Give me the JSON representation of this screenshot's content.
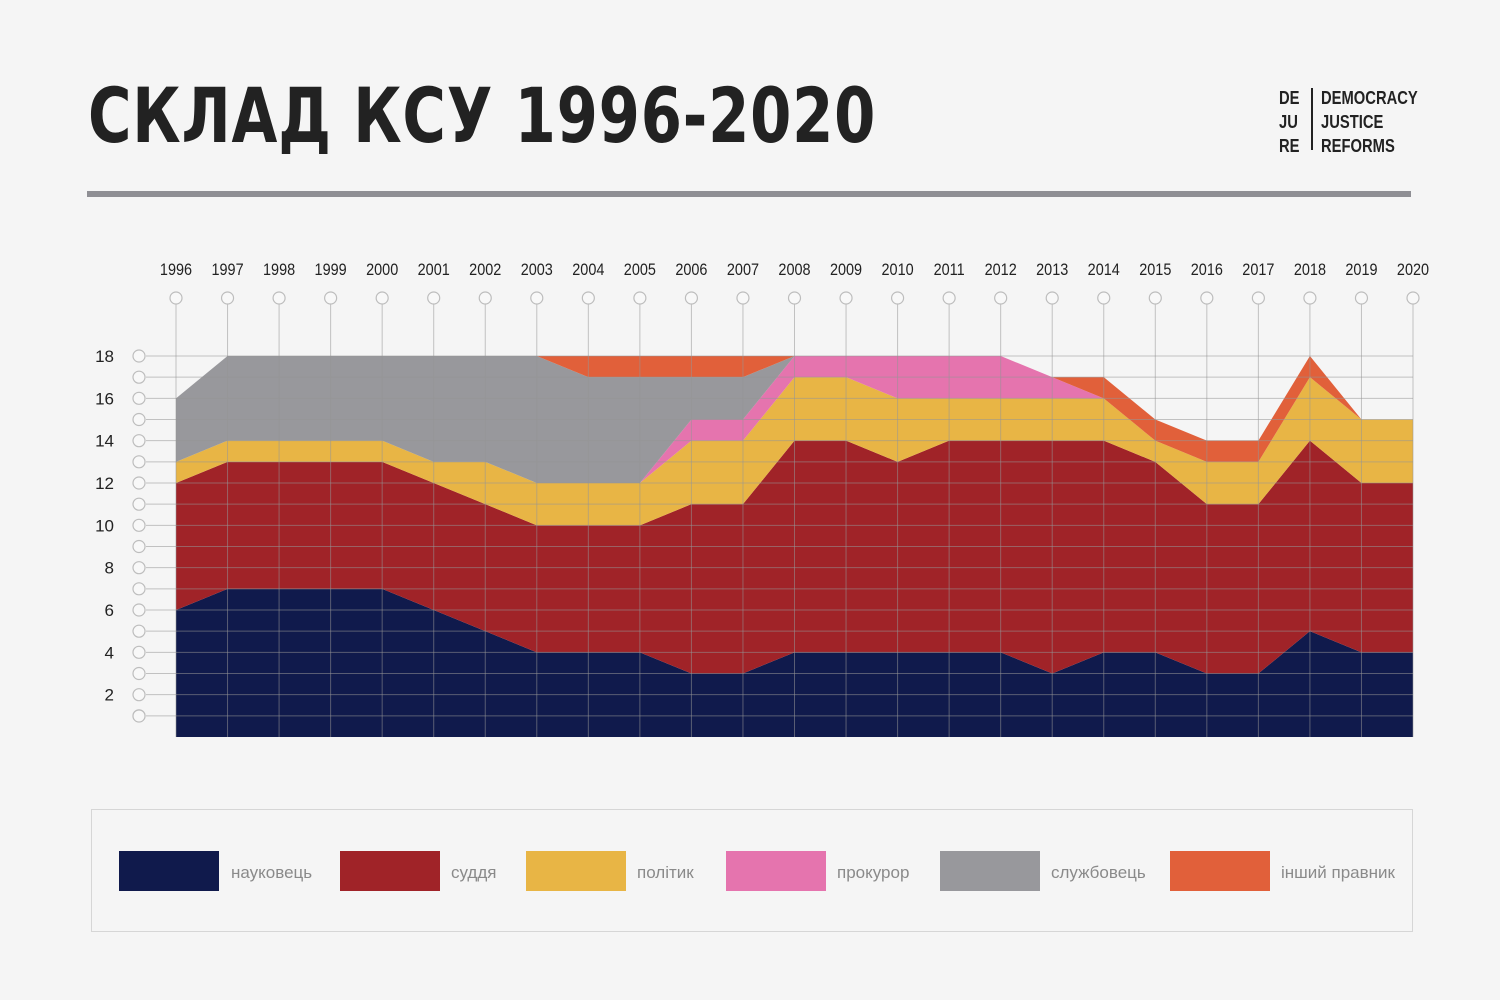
{
  "header": {
    "title": "СКЛАД КСУ 1996-2020",
    "logo": {
      "left": [
        "DE",
        "JU",
        "RE"
      ],
      "right": [
        "DEMOCRACY",
        "JUSTICE",
        "REFORMS"
      ]
    }
  },
  "chart_data": {
    "type": "area",
    "stacked": true,
    "title": "СКЛАД КСУ 1996-2020",
    "x": [
      1996,
      1997,
      1998,
      1999,
      2000,
      2001,
      2002,
      2003,
      2004,
      2005,
      2006,
      2007,
      2008,
      2009,
      2010,
      2011,
      2012,
      2013,
      2014,
      2015,
      2016,
      2017,
      2018,
      2019,
      2020
    ],
    "ylim": [
      0,
      18
    ],
    "yticks": [
      2,
      4,
      6,
      8,
      10,
      12,
      14,
      16,
      18
    ],
    "grid": true,
    "legend_position": "bottom",
    "series": [
      {
        "name": "науковець",
        "color": "#101a4c",
        "values": [
          6,
          7,
          7,
          7,
          7,
          6,
          5,
          4,
          4,
          4,
          3,
          3,
          4,
          4,
          4,
          4,
          4,
          3,
          4,
          4,
          3,
          3,
          5,
          4,
          4
        ]
      },
      {
        "name": "суддя",
        "color": "#a02328",
        "values": [
          6,
          6,
          6,
          6,
          6,
          6,
          6,
          6,
          6,
          6,
          8,
          8,
          10,
          10,
          9,
          10,
          10,
          11,
          10,
          9,
          8,
          8,
          9,
          8,
          8
        ]
      },
      {
        "name": "політик",
        "color": "#e8b545",
        "values": [
          1,
          1,
          1,
          1,
          1,
          1,
          2,
          2,
          2,
          2,
          3,
          3,
          3,
          3,
          3,
          2,
          2,
          2,
          2,
          1,
          2,
          2,
          3,
          3,
          3
        ]
      },
      {
        "name": "прокурор",
        "color": "#e574ae",
        "values": [
          0,
          0,
          0,
          0,
          0,
          0,
          0,
          0,
          0,
          0,
          1,
          1,
          1,
          1,
          2,
          2,
          2,
          1,
          0,
          0,
          0,
          0,
          0,
          0,
          0
        ]
      },
      {
        "name": "службовець",
        "color": "#98989c",
        "values": [
          3,
          4,
          4,
          4,
          4,
          5,
          5,
          6,
          5,
          5,
          2,
          2,
          0,
          0,
          0,
          0,
          0,
          0,
          0,
          0,
          0,
          0,
          0,
          0,
          0
        ]
      },
      {
        "name": "інший правник",
        "color": "#e1603a",
        "values": [
          0,
          0,
          0,
          0,
          0,
          0,
          0,
          0,
          1,
          1,
          1,
          1,
          0,
          0,
          0,
          0,
          0,
          0,
          1,
          1,
          1,
          1,
          1,
          0,
          0
        ]
      }
    ]
  }
}
